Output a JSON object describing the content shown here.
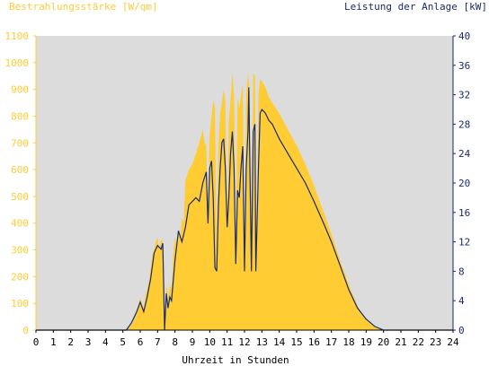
{
  "colors": {
    "plot_bg": "#dcdcdc",
    "irradiance": "#ffcc33",
    "power": "#1a2a6c",
    "left_axis_text": "#ffcc33",
    "right_axis_text": "#1a2a6c",
    "x_axis_text": "#000000"
  },
  "chart_data": {
    "type": "area",
    "left_title": "Bestrahlungsstärke [W/qm]",
    "right_title": "Leistung der Anlage [kW]",
    "xlabel": "Uhrzeit in Stunden",
    "xlim": [
      0,
      24
    ],
    "ylim_left": [
      0,
      1100
    ],
    "ylim_right": [
      0,
      40
    ],
    "x_ticks": [
      "0",
      "1",
      "2",
      "3",
      "4",
      "5",
      "6",
      "7",
      "8",
      "9",
      "10",
      "11",
      "12",
      "13",
      "14",
      "15",
      "16",
      "17",
      "18",
      "19",
      "20",
      "21",
      "22",
      "23",
      "24"
    ],
    "y_ticks_left": [
      "0",
      "100",
      "200",
      "300",
      "400",
      "500",
      "600",
      "700",
      "800",
      "900",
      "1000",
      "1100"
    ],
    "y_ticks_right": [
      "0",
      "4",
      "8",
      "12",
      "16",
      "20",
      "24",
      "28",
      "32",
      "36",
      "40"
    ],
    "grid": false,
    "series": [
      {
        "name": "Bestrahlungsstärke",
        "axis": "left",
        "style": "filled-area",
        "points": [
          [
            5.0,
            0
          ],
          [
            5.3,
            5
          ],
          [
            5.6,
            30
          ],
          [
            5.8,
            70
          ],
          [
            6.0,
            120
          ],
          [
            6.2,
            80
          ],
          [
            6.3,
            130
          ],
          [
            6.5,
            180
          ],
          [
            6.7,
            280
          ],
          [
            6.9,
            330
          ],
          [
            7.0,
            345
          ],
          [
            7.1,
            300
          ],
          [
            7.2,
            340
          ],
          [
            7.3,
            330
          ],
          [
            7.4,
            0
          ],
          [
            7.5,
            180
          ],
          [
            7.6,
            120
          ],
          [
            7.7,
            170
          ],
          [
            7.8,
            150
          ],
          [
            7.9,
            280
          ],
          [
            8.0,
            350
          ],
          [
            8.1,
            310
          ],
          [
            8.2,
            380
          ],
          [
            8.3,
            340
          ],
          [
            8.4,
            420
          ],
          [
            8.5,
            400
          ],
          [
            8.6,
            560
          ],
          [
            8.8,
            600
          ],
          [
            9.0,
            620
          ],
          [
            9.2,
            660
          ],
          [
            9.4,
            700
          ],
          [
            9.6,
            750
          ],
          [
            9.7,
            700
          ],
          [
            9.8,
            690
          ],
          [
            9.9,
            400
          ],
          [
            10.0,
            730
          ],
          [
            10.2,
            860
          ],
          [
            10.3,
            830
          ],
          [
            10.4,
            300
          ],
          [
            10.5,
            690
          ],
          [
            10.6,
            810
          ],
          [
            10.7,
            850
          ],
          [
            10.8,
            900
          ],
          [
            10.9,
            850
          ],
          [
            11.0,
            400
          ],
          [
            11.1,
            780
          ],
          [
            11.2,
            860
          ],
          [
            11.3,
            960
          ],
          [
            11.4,
            880
          ],
          [
            11.5,
            300
          ],
          [
            11.6,
            870
          ],
          [
            11.7,
            830
          ],
          [
            11.8,
            880
          ],
          [
            11.9,
            920
          ],
          [
            12.0,
            250
          ],
          [
            12.1,
            880
          ],
          [
            12.2,
            960
          ],
          [
            12.3,
            890
          ],
          [
            12.4,
            300
          ],
          [
            12.5,
            960
          ],
          [
            12.6,
            950
          ],
          [
            12.7,
            280
          ],
          [
            12.8,
            880
          ],
          [
            12.9,
            940
          ],
          [
            13.0,
            930
          ],
          [
            13.2,
            910
          ],
          [
            13.4,
            870
          ],
          [
            13.6,
            850
          ],
          [
            13.8,
            830
          ],
          [
            14.0,
            810
          ],
          [
            14.5,
            750
          ],
          [
            15.0,
            690
          ],
          [
            15.5,
            620
          ],
          [
            16.0,
            540
          ],
          [
            16.5,
            450
          ],
          [
            17.0,
            360
          ],
          [
            17.5,
            260
          ],
          [
            18.0,
            170
          ],
          [
            18.5,
            90
          ],
          [
            19.0,
            40
          ],
          [
            19.5,
            10
          ],
          [
            20.0,
            0
          ]
        ]
      },
      {
        "name": "Leistung",
        "axis": "right",
        "style": "line",
        "points": [
          [
            0,
            0
          ],
          [
            5.2,
            0
          ],
          [
            5.5,
            1
          ],
          [
            5.8,
            2.5
          ],
          [
            6.0,
            3.8
          ],
          [
            6.2,
            2.5
          ],
          [
            6.4,
            4.5
          ],
          [
            6.6,
            7
          ],
          [
            6.8,
            10.5
          ],
          [
            7.0,
            11.5
          ],
          [
            7.2,
            11
          ],
          [
            7.3,
            11.8
          ],
          [
            7.4,
            0
          ],
          [
            7.5,
            5
          ],
          [
            7.6,
            3
          ],
          [
            7.7,
            4.5
          ],
          [
            7.8,
            4
          ],
          [
            8.0,
            9.5
          ],
          [
            8.2,
            13.5
          ],
          [
            8.4,
            12
          ],
          [
            8.6,
            14
          ],
          [
            8.8,
            17
          ],
          [
            9.0,
            17.5
          ],
          [
            9.2,
            18
          ],
          [
            9.4,
            17.5
          ],
          [
            9.6,
            20
          ],
          [
            9.8,
            21.5
          ],
          [
            9.9,
            14.5
          ],
          [
            10.0,
            22
          ],
          [
            10.1,
            23
          ],
          [
            10.2,
            18
          ],
          [
            10.3,
            8.5
          ],
          [
            10.4,
            8
          ],
          [
            10.5,
            17
          ],
          [
            10.6,
            22
          ],
          [
            10.7,
            25.5
          ],
          [
            10.8,
            26
          ],
          [
            10.9,
            22
          ],
          [
            11.0,
            14
          ],
          [
            11.1,
            18
          ],
          [
            11.2,
            24
          ],
          [
            11.3,
            27
          ],
          [
            11.4,
            22
          ],
          [
            11.5,
            9
          ],
          [
            11.6,
            19
          ],
          [
            11.7,
            18
          ],
          [
            11.8,
            22
          ],
          [
            11.9,
            25
          ],
          [
            12.0,
            8
          ],
          [
            12.1,
            22
          ],
          [
            12.2,
            27
          ],
          [
            12.25,
            33
          ],
          [
            12.3,
            24
          ],
          [
            12.4,
            8
          ],
          [
            12.5,
            27
          ],
          [
            12.6,
            28
          ],
          [
            12.65,
            8
          ],
          [
            12.8,
            22
          ],
          [
            12.9,
            29.5
          ],
          [
            13.0,
            30
          ],
          [
            13.2,
            29.5
          ],
          [
            13.4,
            28.5
          ],
          [
            13.6,
            28
          ],
          [
            13.8,
            27
          ],
          [
            14.0,
            26
          ],
          [
            14.5,
            24
          ],
          [
            15.0,
            22
          ],
          [
            15.5,
            20
          ],
          [
            16.0,
            17.5
          ],
          [
            16.5,
            14.8
          ],
          [
            17.0,
            12
          ],
          [
            17.5,
            8.8
          ],
          [
            18.0,
            5.5
          ],
          [
            18.5,
            3
          ],
          [
            19.0,
            1.5
          ],
          [
            19.5,
            0.5
          ],
          [
            20.0,
            0
          ],
          [
            24,
            0
          ]
        ]
      }
    ]
  }
}
